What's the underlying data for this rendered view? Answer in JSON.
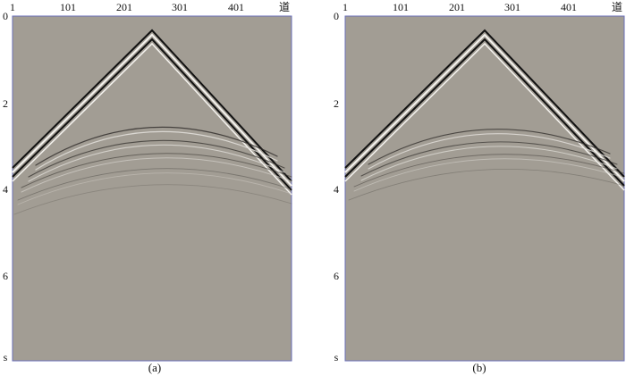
{
  "panels": [
    {
      "caption": "(a)",
      "x_ticks": [
        "1",
        "101",
        "201",
        "301",
        "401"
      ],
      "x_unit": "道",
      "y_ticks": [
        "0",
        "2",
        "4",
        "6"
      ],
      "y_unit": "s"
    },
    {
      "caption": "(b)",
      "x_ticks": [
        "1",
        "101",
        "201",
        "301",
        "401"
      ],
      "x_unit": "道",
      "y_ticks": [
        "0",
        "2",
        "4",
        "6"
      ],
      "y_unit": "s"
    }
  ],
  "colors": {
    "background": "#a29d94",
    "frame": "#6a6fb8",
    "event_dark": "#111111",
    "event_light": "#f4f2ee"
  }
}
